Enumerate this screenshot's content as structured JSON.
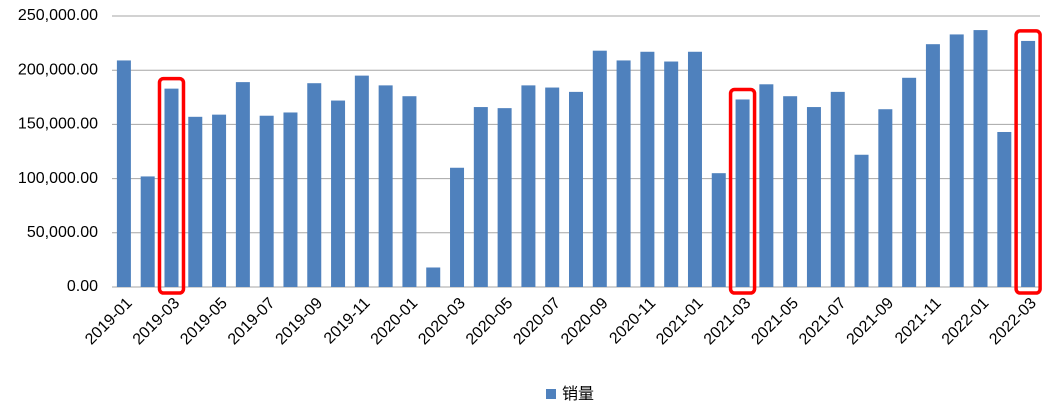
{
  "chart_data": {
    "type": "bar",
    "categories": [
      "2019-01",
      null,
      "2019-03",
      null,
      "2019-05",
      null,
      "2019-07",
      null,
      "2019-09",
      null,
      "2019-11",
      null,
      "2020-01",
      null,
      "2020-03",
      null,
      "2020-05",
      null,
      "2020-07",
      null,
      "2020-09",
      null,
      "2020-11",
      null,
      "2021-01",
      null,
      "2021-03",
      null,
      "2021-05",
      null,
      "2021-07",
      null,
      "2021-09",
      null,
      "2021-11",
      null,
      "2022-01",
      null,
      "2022-03"
    ],
    "series": [
      {
        "name": "销量",
        "color": "#4f81bd",
        "values": [
          209000,
          102000,
          183000,
          157000,
          159000,
          189000,
          158000,
          161000,
          188000,
          172000,
          195000,
          186000,
          176000,
          18000,
          110000,
          166000,
          165000,
          186000,
          184000,
          180000,
          218000,
          209000,
          217000,
          208000,
          217000,
          105000,
          173000,
          187000,
          176000,
          166000,
          180000,
          122000,
          164000,
          193000,
          224000,
          233000,
          237000,
          143000,
          227000
        ]
      }
    ],
    "ylim": [
      0,
      250000
    ],
    "yticks": [
      {
        "value": 0,
        "label": "0.00"
      },
      {
        "value": 50000,
        "label": "50,000.00"
      },
      {
        "value": 100000,
        "label": "100,000.00"
      },
      {
        "value": 150000,
        "label": "150,000.00"
      },
      {
        "value": 200000,
        "label": "200,000.00"
      },
      {
        "value": 250000,
        "label": "250,000.00"
      }
    ],
    "grid": true,
    "legend": "bottom",
    "highlight_indices": [
      2,
      26,
      38
    ],
    "highlight_color": "#ff0000"
  }
}
